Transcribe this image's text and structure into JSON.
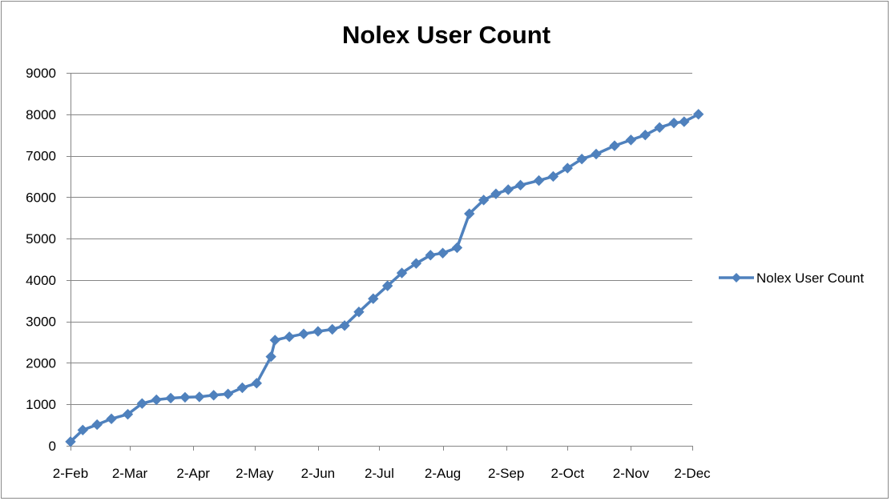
{
  "chart_data": {
    "type": "line",
    "title": "Nolex User Count",
    "xlabel": "",
    "ylabel": "",
    "x_ticks": [
      "2-Feb",
      "2-Mar",
      "2-Apr",
      "2-May",
      "2-Jun",
      "2-Jul",
      "2-Aug",
      "2-Sep",
      "2-Oct",
      "2-Nov",
      "2-Dec"
    ],
    "y_ticks": [
      0,
      1000,
      2000,
      3000,
      4000,
      5000,
      6000,
      7000,
      8000,
      9000
    ],
    "ylim": [
      0,
      9000
    ],
    "xlim": [
      "2-Feb",
      "2-Dec"
    ],
    "grid": "horizontal",
    "legend_position": "right",
    "series": [
      {
        "name": "Nolex User Count",
        "color": "#4F81BD",
        "marker": "diamond",
        "points": [
          {
            "x": "2-Feb",
            "y": 100
          },
          {
            "x": "8-Feb",
            "y": 380
          },
          {
            "x": "15-Feb",
            "y": 510
          },
          {
            "x": "22-Feb",
            "y": 650
          },
          {
            "x": "1-Mar",
            "y": 760
          },
          {
            "x": "8-Mar",
            "y": 1020
          },
          {
            "x": "15-Mar",
            "y": 1110
          },
          {
            "x": "22-Mar",
            "y": 1150
          },
          {
            "x": "29-Mar",
            "y": 1170
          },
          {
            "x": "5-Apr",
            "y": 1180
          },
          {
            "x": "12-Apr",
            "y": 1220
          },
          {
            "x": "19-Apr",
            "y": 1250
          },
          {
            "x": "26-Apr",
            "y": 1400
          },
          {
            "x": "3-May",
            "y": 1510
          },
          {
            "x": "10-May",
            "y": 2150
          },
          {
            "x": "12-May",
            "y": 2550
          },
          {
            "x": "19-May",
            "y": 2630
          },
          {
            "x": "26-May",
            "y": 2700
          },
          {
            "x": "2-Jun",
            "y": 2760
          },
          {
            "x": "9-Jun",
            "y": 2810
          },
          {
            "x": "15-Jun",
            "y": 2900
          },
          {
            "x": "22-Jun",
            "y": 3230
          },
          {
            "x": "29-Jun",
            "y": 3550
          },
          {
            "x": "6-Jul",
            "y": 3860
          },
          {
            "x": "13-Jul",
            "y": 4170
          },
          {
            "x": "20-Jul",
            "y": 4400
          },
          {
            "x": "27-Jul",
            "y": 4600
          },
          {
            "x": "2-Aug",
            "y": 4650
          },
          {
            "x": "9-Aug",
            "y": 4780
          },
          {
            "x": "15-Aug",
            "y": 5600
          },
          {
            "x": "22-Aug",
            "y": 5930
          },
          {
            "x": "28-Aug",
            "y": 6080
          },
          {
            "x": "3-Sep",
            "y": 6180
          },
          {
            "x": "9-Sep",
            "y": 6290
          },
          {
            "x": "18-Sep",
            "y": 6400
          },
          {
            "x": "25-Sep",
            "y": 6500
          },
          {
            "x": "2-Oct",
            "y": 6700
          },
          {
            "x": "9-Oct",
            "y": 6920
          },
          {
            "x": "16-Oct",
            "y": 7040
          },
          {
            "x": "25-Oct",
            "y": 7240
          },
          {
            "x": "2-Nov",
            "y": 7380
          },
          {
            "x": "9-Nov",
            "y": 7500
          },
          {
            "x": "16-Nov",
            "y": 7680
          },
          {
            "x": "23-Nov",
            "y": 7790
          },
          {
            "x": "28-Nov",
            "y": 7820
          },
          {
            "x": "5-Dec",
            "y": 8000
          }
        ]
      }
    ]
  }
}
